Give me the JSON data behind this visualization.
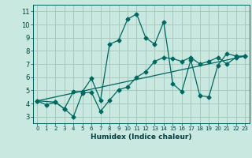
{
  "title": "",
  "xlabel": "Humidex (Indice chaleur)",
  "bg_color": "#c8e8e0",
  "grid_color": "#a8c8c0",
  "line_color": "#006860",
  "xlim": [
    -0.5,
    23.5
  ],
  "ylim": [
    2.5,
    11.5
  ],
  "xticks": [
    0,
    1,
    2,
    3,
    4,
    5,
    6,
    7,
    8,
    9,
    10,
    11,
    12,
    13,
    14,
    15,
    16,
    17,
    18,
    19,
    20,
    21,
    22,
    23
  ],
  "yticks": [
    3,
    4,
    5,
    6,
    7,
    8,
    9,
    10,
    11
  ],
  "line1_x": [
    0,
    1,
    2,
    3,
    4,
    5,
    6,
    7,
    8,
    9,
    10,
    11,
    12,
    13,
    14,
    15,
    16,
    17,
    18,
    19,
    20,
    21,
    22,
    23
  ],
  "line1_y": [
    4.2,
    3.9,
    4.1,
    3.6,
    3.0,
    4.8,
    4.85,
    3.4,
    4.25,
    5.05,
    5.25,
    6.0,
    6.4,
    7.2,
    7.5,
    7.4,
    7.2,
    7.5,
    7.0,
    7.2,
    7.5,
    7.0,
    7.5,
    7.6
  ],
  "line2_x": [
    0,
    2,
    3,
    4,
    5,
    6,
    7,
    8,
    9,
    10,
    11,
    12,
    13,
    14,
    15,
    16,
    17,
    18,
    19,
    20,
    21,
    22,
    23
  ],
  "line2_y": [
    4.2,
    4.1,
    3.6,
    4.9,
    4.9,
    5.9,
    4.25,
    8.5,
    8.8,
    10.4,
    10.8,
    9.0,
    8.5,
    10.2,
    5.5,
    4.9,
    7.3,
    4.6,
    4.5,
    6.9,
    7.8,
    7.6,
    7.6
  ],
  "line3_x": [
    0,
    23
  ],
  "line3_y": [
    4.2,
    7.6
  ]
}
